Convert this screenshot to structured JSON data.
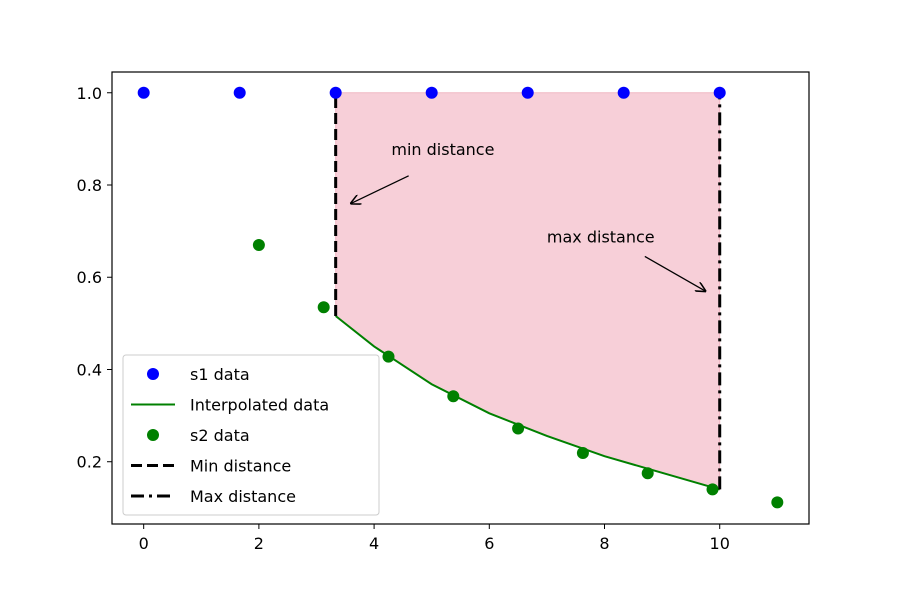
{
  "chart_data": {
    "type": "scatter",
    "xlim": [
      -0.55,
      11.55
    ],
    "ylim": [
      0.065,
      1.045
    ],
    "xticks": [
      0,
      2,
      4,
      6,
      8,
      10
    ],
    "xtick_labels": [
      "0",
      "2",
      "4",
      "6",
      "8",
      "10"
    ],
    "yticks": [
      0.2,
      0.4,
      0.6,
      0.8,
      1.0
    ],
    "ytick_labels": [
      "0.2",
      "0.4",
      "0.6",
      "0.8",
      "1.0"
    ],
    "grid": false,
    "legend_position": "lower-left",
    "series": [
      {
        "name": "s1 data",
        "kind": "points",
        "color": "#0000ff",
        "x": [
          0,
          1.667,
          3.333,
          5.0,
          6.667,
          8.333,
          10.0
        ],
        "y": [
          1.0,
          1.0,
          1.0,
          1.0,
          1.0,
          1.0,
          1.0
        ]
      },
      {
        "name": "Interpolated data",
        "kind": "line",
        "color": "#008000",
        "x": [
          3.333,
          4.0,
          5.0,
          6.0,
          7.0,
          8.0,
          9.0,
          10.0
        ],
        "y": [
          0.516,
          0.45,
          0.368,
          0.305,
          0.256,
          0.212,
          0.176,
          0.14
        ]
      },
      {
        "name": "s2 data",
        "kind": "points",
        "color": "#008000",
        "x": [
          2.0,
          3.125,
          4.25,
          5.375,
          6.5,
          7.625,
          8.75,
          9.875,
          11.0
        ],
        "y": [
          0.67,
          0.535,
          0.428,
          0.342,
          0.272,
          0.219,
          0.175,
          0.14,
          0.112
        ]
      },
      {
        "name": "Min distance",
        "kind": "vline-dashed",
        "color": "#000000",
        "x": 3.333,
        "y_range": [
          0.516,
          1.0
        ]
      },
      {
        "name": "Max distance",
        "kind": "vline-dashdot",
        "color": "#000000",
        "x": 10.0,
        "y_range": [
          0.14,
          1.0
        ]
      }
    ],
    "fill": {
      "color": "#f7cfd8",
      "between": "s1 data and Interpolated data",
      "x_range": [
        3.333,
        10.0
      ]
    },
    "annotations": [
      {
        "text": "min distance",
        "text_at": [
          4.3,
          0.865
        ],
        "arrow_from": [
          4.6,
          0.82
        ],
        "arrow_to": [
          3.6,
          0.76
        ]
      },
      {
        "text": "max distance",
        "text_at": [
          7.0,
          0.675
        ],
        "arrow_from": [
          8.7,
          0.645
        ],
        "arrow_to": [
          9.75,
          0.57
        ]
      }
    ]
  }
}
